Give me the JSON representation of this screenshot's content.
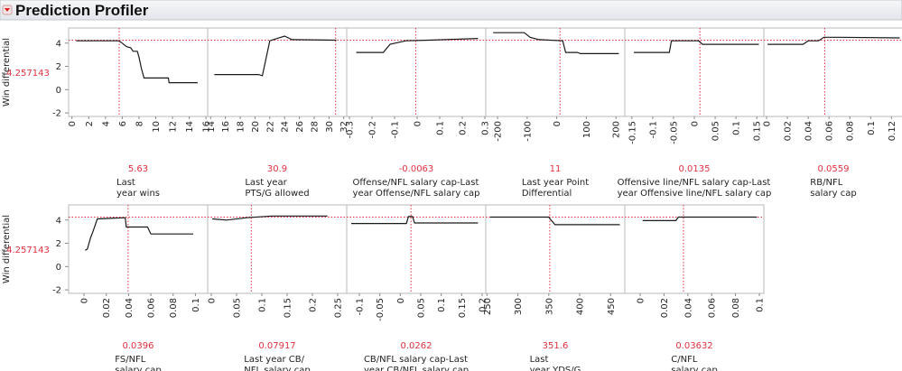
{
  "title": "Prediction Profiler",
  "response": {
    "label": "Win differential",
    "value": 4.257143
  },
  "chart_data": [
    {
      "type": "line",
      "label": [
        "Last",
        "year wins"
      ],
      "current": 5.63,
      "x": [
        0.5,
        5.6,
        6,
        6.5,
        7,
        7.3,
        7.8,
        8,
        8.3,
        8.6,
        11.5,
        11.6,
        15
      ],
      "values": [
        4.2,
        4.2,
        4.0,
        3.7,
        3.6,
        3.3,
        3.3,
        2.8,
        1.8,
        1.0,
        1.0,
        0.6,
        0.6
      ],
      "xlim": [
        -0.4,
        16.2
      ],
      "xticks": [
        0,
        2,
        4,
        6,
        8,
        10,
        12,
        14,
        16
      ],
      "ylim": [
        -2.3,
        5.3
      ],
      "yticks": [
        -2,
        0,
        2,
        4
      ],
      "color": "#1a1a1a",
      "reference_color": "#e0303f"
    },
    {
      "type": "line",
      "label": [
        "Last year",
        "PTS/G allowed"
      ],
      "current": 30.9,
      "x": [
        14.5,
        20.5,
        21,
        22,
        23,
        24,
        25,
        31
      ],
      "values": [
        1.3,
        1.3,
        1.2,
        4.2,
        4.4,
        4.6,
        4.3,
        4.25
      ],
      "xlim": [
        13.6,
        32.4
      ],
      "xticks": [
        14,
        16,
        18,
        20,
        22,
        24,
        26,
        28,
        30,
        32
      ],
      "ylim": [
        -2.3,
        5.3
      ],
      "yticks": [
        -2,
        0,
        2,
        4
      ],
      "color": "#1a1a1a",
      "reference_color": "#e0303f"
    },
    {
      "type": "line",
      "label": [
        "Offense/NFL salary cap-Last",
        "year Offense/NFL salary cap"
      ],
      "current": -0.0063,
      "x": [
        -0.27,
        -0.15,
        -0.12,
        -0.05,
        0.05,
        0.27
      ],
      "values": [
        3.2,
        3.2,
        3.9,
        4.2,
        4.25,
        4.4
      ],
      "xlim": [
        -0.312,
        0.304
      ],
      "xticks": [
        -0.3,
        -0.2,
        -0.1,
        0,
        0.1,
        0.2,
        0.3
      ],
      "ylim": [
        -2.3,
        5.3
      ],
      "yticks": [
        -2,
        0,
        2,
        4
      ],
      "color": "#1a1a1a",
      "reference_color": "#e0303f"
    },
    {
      "type": "line",
      "label": [
        "Last year Point",
        "Differential"
      ],
      "current": 11,
      "x": [
        -215,
        -110,
        -90,
        -60,
        20,
        30,
        70,
        80,
        210
      ],
      "values": [
        4.9,
        4.9,
        4.5,
        4.3,
        4.2,
        3.2,
        3.2,
        3.1,
        3.1
      ],
      "xlim": [
        -240,
        230
      ],
      "xticks": [
        -200,
        -100,
        0,
        100,
        200
      ],
      "ylim": [
        -2.3,
        5.3
      ],
      "yticks": [
        -2,
        0,
        2,
        4
      ],
      "color": "#1a1a1a",
      "reference_color": "#e0303f"
    },
    {
      "type": "line",
      "label": [
        "Offensive line/NFL salary cap-Last",
        "year Offensive line/NFL salary cap"
      ],
      "current": 0.0135,
      "x": [
        -0.145,
        -0.06,
        -0.055,
        0.01,
        0.02,
        0.155
      ],
      "values": [
        3.2,
        3.2,
        4.2,
        4.2,
        3.9,
        3.9
      ],
      "xlim": [
        -0.167,
        0.167
      ],
      "xticks": [
        -0.15,
        -0.1,
        -0.05,
        0,
        0.05,
        0.1,
        0.15
      ],
      "ylim": [
        -2.3,
        5.3
      ],
      "yticks": [
        -2,
        0,
        2,
        4
      ],
      "color": "#1a1a1a",
      "reference_color": "#e0303f"
    },
    {
      "type": "line",
      "label": [
        "RB/NFL",
        "salary cap"
      ],
      "current": 0.0559,
      "x": [
        0.001,
        0.035,
        0.04,
        0.05,
        0.055,
        0.07,
        0.128
      ],
      "values": [
        3.9,
        3.9,
        4.2,
        4.2,
        4.5,
        4.5,
        4.45
      ],
      "xlim": [
        -0.0026,
        0.131
      ],
      "xticks": [
        0,
        0.02,
        0.04,
        0.06,
        0.08,
        0.1,
        0.12
      ],
      "ylim": [
        -2.3,
        5.3
      ],
      "yticks": [
        -2,
        0,
        2,
        4
      ],
      "color": "#1a1a1a",
      "reference_color": "#e0303f"
    },
    {
      "type": "line",
      "label": [
        "FS/NFL",
        "salary cap"
      ],
      "current": 0.0396,
      "x": [
        0.001,
        0.003,
        0.006,
        0.008,
        0.012,
        0.037,
        0.038,
        0.057,
        0.06,
        0.098
      ],
      "values": [
        1.4,
        1.5,
        2.5,
        3.0,
        4.1,
        4.2,
        3.4,
        3.4,
        2.8,
        2.8
      ],
      "xlim": [
        -0.0138,
        0.111
      ],
      "xticks": [
        0,
        0.02,
        0.04,
        0.06,
        0.08,
        0.1
      ],
      "ylim": [
        -2.3,
        5.3
      ],
      "yticks": [
        -2,
        0,
        2,
        4
      ],
      "color": "#1a1a1a",
      "reference_color": "#e0303f"
    },
    {
      "type": "line",
      "label": [
        "Last year CB/",
        "NFL salary cap"
      ],
      "current": 0.07917,
      "x": [
        0.002,
        0.03,
        0.07,
        0.12,
        0.23
      ],
      "values": [
        4.1,
        4.0,
        4.2,
        4.35,
        4.35
      ],
      "xlim": [
        -0.0071,
        0.268
      ],
      "xticks": [
        0,
        0.05,
        0.1,
        0.15,
        0.2,
        0.25
      ],
      "ylim": [
        -2.3,
        5.3
      ],
      "yticks": [
        -2,
        0,
        2,
        4
      ],
      "color": "#1a1a1a",
      "reference_color": "#e0303f"
    },
    {
      "type": "line",
      "label": [
        "CB/NFL salary cap-Last",
        "year CB/NFL salary cap"
      ],
      "current": 0.0262,
      "x": [
        -0.12,
        0.015,
        0.02,
        0.03,
        0.035,
        0.19
      ],
      "values": [
        3.7,
        3.7,
        4.3,
        4.3,
        3.75,
        3.75
      ],
      "xlim": [
        -0.131,
        0.209
      ],
      "xticks": [
        -0.1,
        -0.05,
        0,
        0.05,
        0.1,
        0.15,
        0.2
      ],
      "ylim": [
        -2.3,
        5.3
      ],
      "yticks": [
        -2,
        0,
        2,
        4
      ],
      "color": "#1a1a1a",
      "reference_color": "#e0303f"
    },
    {
      "type": "line",
      "label": [
        "Last",
        "year YDS/G"
      ],
      "current": 351.6,
      "x": [
        255,
        350,
        352,
        360,
        465
      ],
      "values": [
        4.25,
        4.25,
        4.1,
        3.6,
        3.6
      ],
      "xlim": [
        248,
        473
      ],
      "xticks": [
        250,
        300,
        350,
        400,
        450
      ],
      "ylim": [
        -2.3,
        5.3
      ],
      "yticks": [
        -2,
        0,
        2,
        4
      ],
      "color": "#1a1a1a",
      "reference_color": "#e0303f"
    },
    {
      "type": "line",
      "label": [
        "C/NFL",
        "salary cap"
      ],
      "current": 0.03632,
      "x": [
        0.002,
        0.03,
        0.032,
        0.098
      ],
      "values": [
        3.95,
        3.95,
        4.25,
        4.25
      ],
      "xlim": [
        -0.0129,
        0.1038
      ],
      "xticks": [
        0,
        0.02,
        0.04,
        0.06,
        0.08,
        0.1
      ],
      "ylim": [
        -2.3,
        5.3
      ],
      "yticks": [
        -2,
        0,
        2,
        4
      ],
      "color": "#1a1a1a",
      "reference_color": "#e0303f"
    }
  ]
}
